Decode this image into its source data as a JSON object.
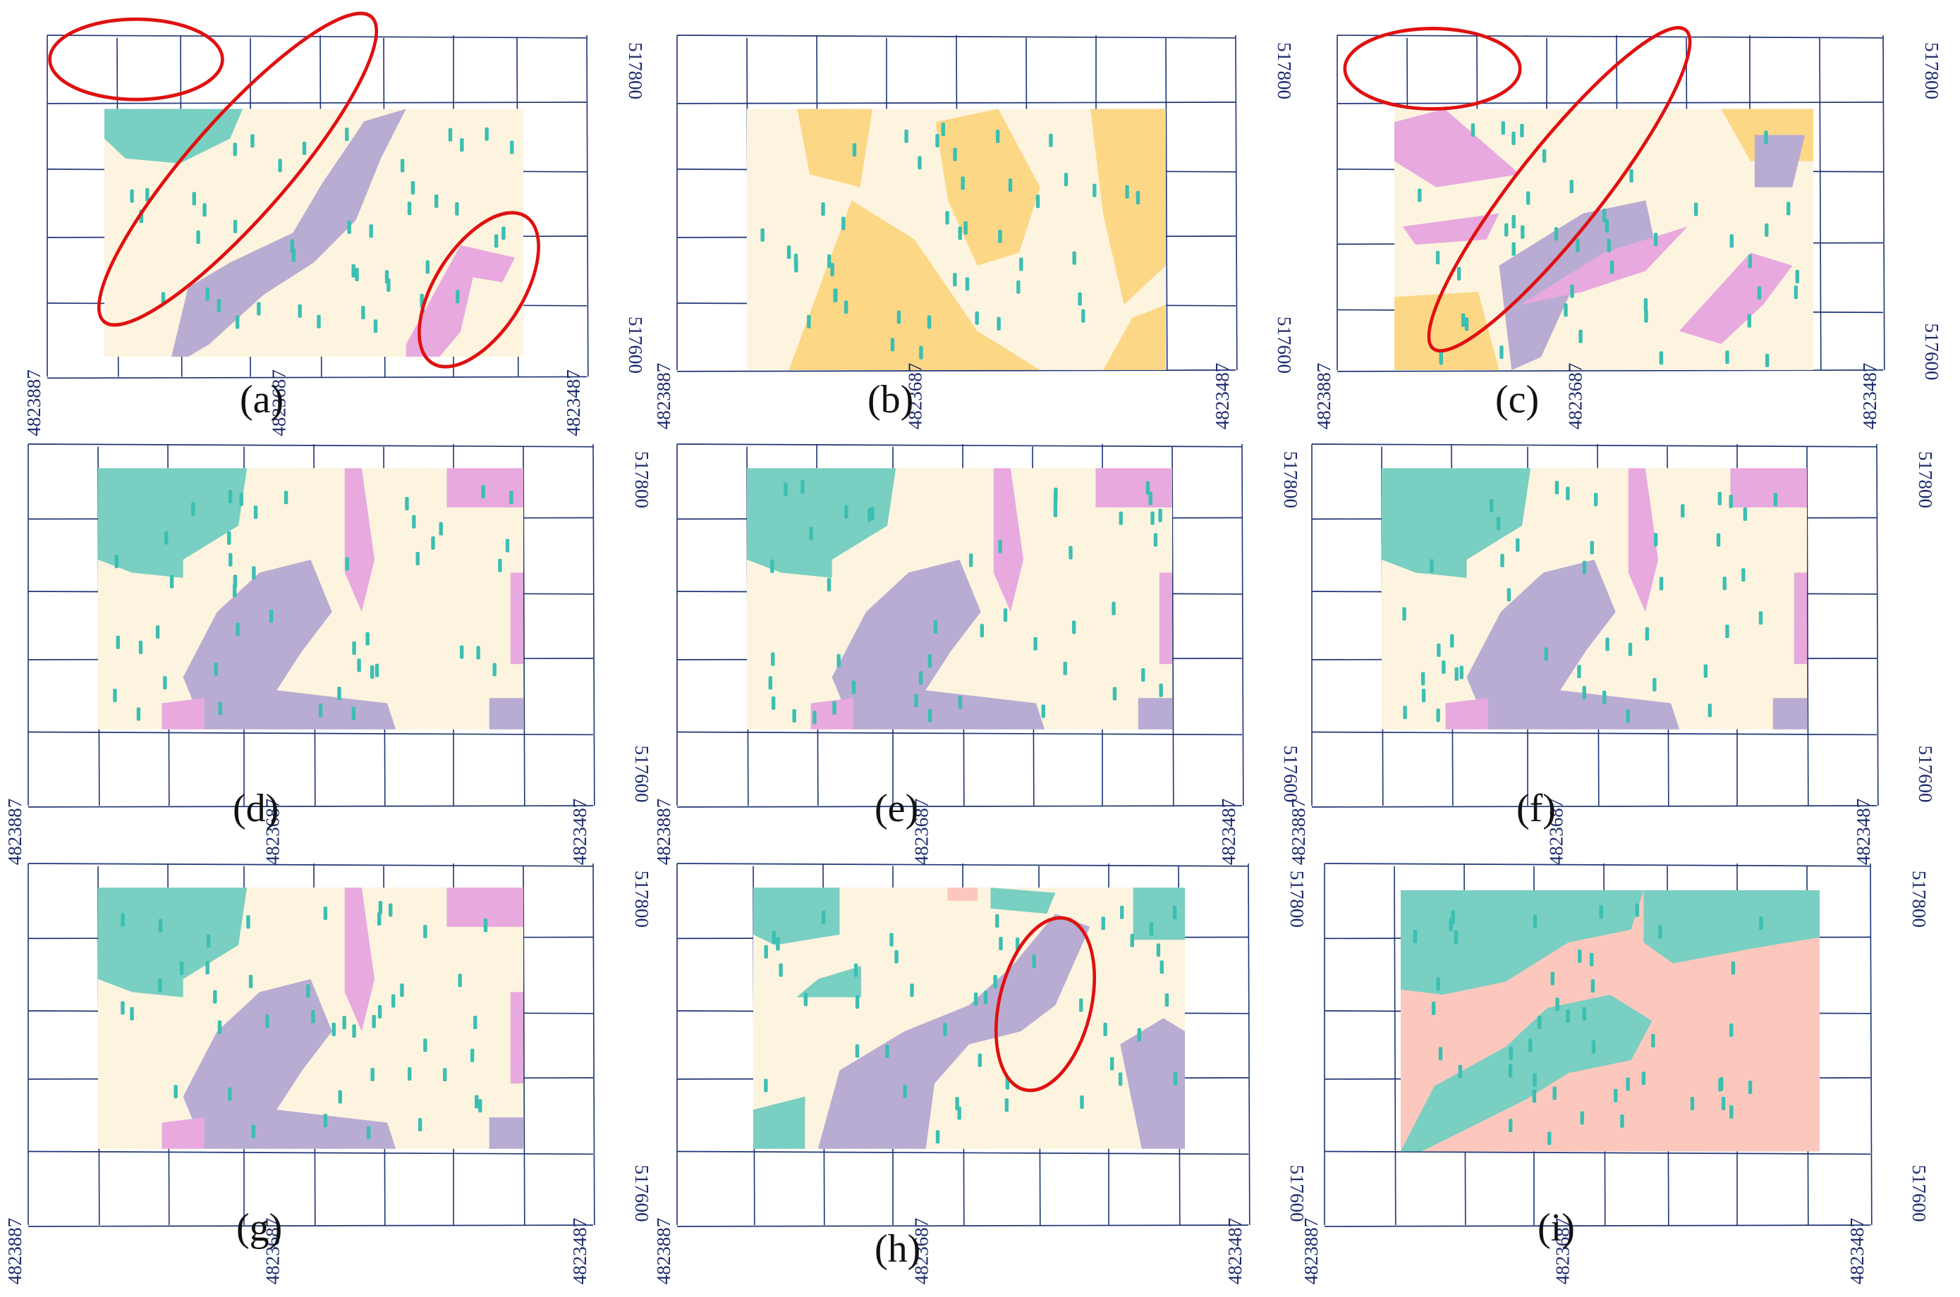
{
  "colors": {
    "background": "#fdf4df",
    "teal": "#79cfc1",
    "lavender": "#b8acd2",
    "pink": "#e8a9df",
    "orange": "#fcd786",
    "salmon": "#fcc8bd",
    "grid": "#1f3574",
    "highlight": "#e01010",
    "marker": "#3bbfb2"
  },
  "coords": {
    "x_left": "4823887",
    "x_mid": "4823687",
    "x_right": "4823487",
    "y_top": "517800",
    "y_bottom": "517600"
  },
  "panels": [
    {
      "id": "a",
      "label": "(a)",
      "style": "a"
    },
    {
      "id": "b",
      "label": "(b)",
      "style": "b"
    },
    {
      "id": "c",
      "label": "(c)",
      "style": "c"
    },
    {
      "id": "d",
      "label": "(d)",
      "style": "d"
    },
    {
      "id": "e",
      "label": "(e)",
      "style": "d"
    },
    {
      "id": "f",
      "label": "(f)",
      "style": "d"
    },
    {
      "id": "g",
      "label": "(g)",
      "style": "d"
    },
    {
      "id": "h",
      "label": "(h)",
      "style": "h"
    },
    {
      "id": "i",
      "label": "(i)",
      "style": "i"
    }
  ]
}
